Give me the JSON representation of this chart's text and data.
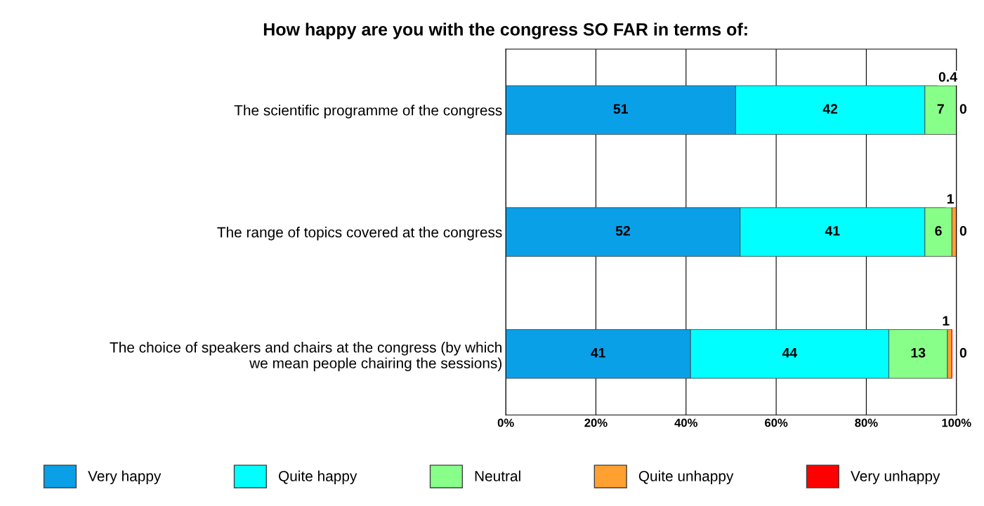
{
  "chart_data": {
    "type": "bar",
    "orientation": "horizontal",
    "stacked": true,
    "title": "How happy are you with the congress SO FAR in terms of:",
    "categories": [
      "The scientific programme of the congress",
      "The range of topics covered at the congress",
      "The choice of speakers and chairs at the congress (by which\nwe mean people chairing the sessions)"
    ],
    "series": [
      {
        "name": "Very happy",
        "color": "#0aa0e8",
        "values": [
          51,
          52,
          41
        ]
      },
      {
        "name": "Quite happy",
        "color": "#00ffff",
        "values": [
          42,
          41,
          44
        ]
      },
      {
        "name": "Neutral",
        "color": "#88ff88",
        "values": [
          7,
          6,
          13
        ]
      },
      {
        "name": "Quite unhappy",
        "color": "#ffa030",
        "values": [
          0.4,
          1,
          1
        ]
      },
      {
        "name": "Very unhappy",
        "color": "#ff0000",
        "values": [
          0,
          0,
          0
        ]
      }
    ],
    "xlim": [
      0,
      100
    ],
    "xticks": [
      {
        "value": 0,
        "label": "0%"
      },
      {
        "value": 20,
        "label": "20%"
      },
      {
        "value": 40,
        "label": "40%"
      },
      {
        "value": 60,
        "label": "60%"
      },
      {
        "value": 80,
        "label": "80%"
      },
      {
        "value": 100,
        "label": "100%"
      }
    ],
    "data_labels": true,
    "grid": "x",
    "legend": "bottom"
  }
}
